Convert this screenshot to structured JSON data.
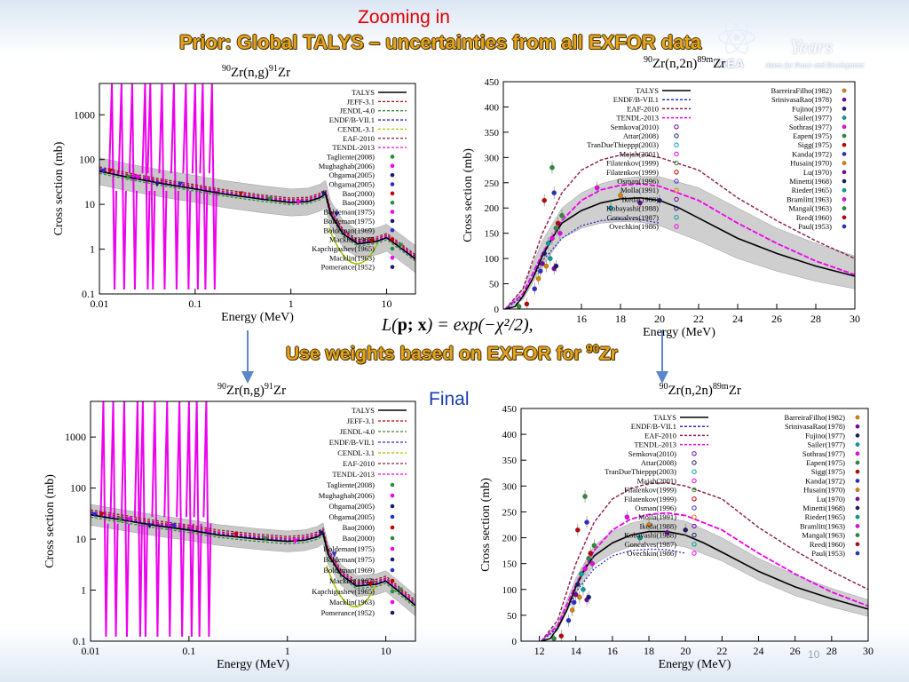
{
  "header": {
    "zoom_label": "Zooming in",
    "title": "Prior: Global TALYS – uncertainties from all EXFOR data",
    "weights_text": "Use weights based on EXFOR for ",
    "weights_sup": "90",
    "weights_tail": "Zr",
    "formula_lhs": "L(",
    "formula_bold": "p; x",
    "formula_rhs": ") = exp(−χ²/2),",
    "final_label": "Final",
    "page_number": "10"
  },
  "logo": {
    "years": "Years",
    "org": "IAEA",
    "tagline": "Atoms for Peace and Development"
  },
  "colors": {
    "talys": "#000000",
    "jeff": "#c00000",
    "jendl": "#2e8b3a",
    "endf": "#2c2ccc",
    "cendl": "#a8c000",
    "eaf": "#8b1a4a",
    "tendl": "#ee00ee",
    "band": "#b8b8b8",
    "arrow": "#5b86c8",
    "title_gold": "#e3a41e"
  },
  "chart_data": [
    {
      "id": "ng-prior",
      "type": "line",
      "title_sup1": "90",
      "title_el1": "Zr(n,g)",
      "title_sup2": "91",
      "title_el2": "Zr",
      "xlabel": "Energy (MeV)",
      "ylabel": "Cross section (mb)",
      "xscale": "log",
      "yscale": "log",
      "xlim": [
        0.01,
        20
      ],
      "ylim": [
        0.1,
        5000
      ],
      "xticks": [
        "0.01",
        "0.1",
        "1",
        "10"
      ],
      "yticks": [
        "0.1",
        "1",
        "10",
        "100",
        "1000"
      ],
      "legend": [
        "TALYS",
        "JEFF-3.1",
        "JENDL-4.0",
        "ENDF/B-VII.1",
        "CENDL-3.1",
        "EAF-2010",
        "TENDL-2013",
        "Tagliente(2008)",
        "Mughaghab(2006)",
        "Ohgama(2005)",
        "Ohgama(2005)",
        "Bao(2000)",
        "Bao(2000)",
        "Boldeman(1975)",
        "Boldeman(1975)",
        "Boldeman(1969)",
        "Macklin(1967)",
        "Kapchigashev(1965)",
        "Macklin(1963)",
        "Pomerance(1952)"
      ],
      "talys": [
        [
          0.01,
          55
        ],
        [
          0.02,
          40
        ],
        [
          0.05,
          28
        ],
        [
          0.1,
          22
        ],
        [
          0.2,
          17
        ],
        [
          0.5,
          13
        ],
        [
          1,
          11
        ],
        [
          1.5,
          11.5
        ],
        [
          2,
          14
        ],
        [
          2.3,
          17
        ],
        [
          2.6,
          6
        ],
        [
          3.5,
          2.2
        ],
        [
          5,
          1.3
        ],
        [
          8,
          1.5
        ],
        [
          10,
          1.8
        ],
        [
          13,
          1.2
        ],
        [
          20,
          0.6
        ]
      ],
      "band_factor": 2.0,
      "resonances": [
        0.0135,
        0.017,
        0.022,
        0.03,
        0.034,
        0.045,
        0.06,
        0.08,
        0.1,
        0.12,
        0.15
      ]
    },
    {
      "id": "n2n-prior",
      "type": "line",
      "title_sup1": "90",
      "title_el1": "Zr(n,2n)",
      "title_sup2": "89m",
      "title_el2": "Zr",
      "xlabel": "Energy (MeV)",
      "ylabel": "Cross section (mb)",
      "xlim": [
        12,
        30
      ],
      "ylim": [
        0,
        450
      ],
      "xticks": [
        "16",
        "18",
        "20",
        "22",
        "24",
        "26",
        "28",
        "30"
      ],
      "yticks": [
        "0",
        "50",
        "100",
        "150",
        "200",
        "250",
        "300",
        "350",
        "400",
        "450"
      ],
      "legend_left": [
        "TALYS",
        "ENDF/B-VII.1",
        "EAF-2010",
        "TENDL-2013",
        "Semkova(2010)",
        "Attar(2008)",
        "TranDueThieppp(2003)",
        "Majah(2001)",
        "Filatenkov(1999)",
        "Filatenkov(1999)",
        "Osman(1996)",
        "Molla(1991)",
        "Ikeda(1988)",
        "Kobayashi(1988)",
        "Goncalves(1987)",
        "Ovechkin(1986)"
      ],
      "legend_right": [
        "BarreiraFilho(1982)",
        "SrinivasaRao(1978)",
        "Fujino(1977)",
        "Sailer(1977)",
        "Sothras(1977)",
        "Eapen(1975)",
        "Sigg(1975)",
        "Kanda(1972)",
        "Husain(1970)",
        "Lu(1970)",
        "Minetti(1968)",
        "Rieder(1965)",
        "Bramlitt(1963)",
        "Mangal(1963)",
        "Reed(1960)",
        "Paul(1953)"
      ],
      "talys": [
        [
          12.1,
          0
        ],
        [
          12.6,
          5
        ],
        [
          13,
          25
        ],
        [
          13.5,
          60
        ],
        [
          14,
          105
        ],
        [
          14.5,
          140
        ],
        [
          15,
          170
        ],
        [
          16,
          195
        ],
        [
          17,
          210
        ],
        [
          18,
          218
        ],
        [
          19,
          220
        ],
        [
          20,
          215
        ],
        [
          21,
          200
        ],
        [
          22,
          180
        ],
        [
          24,
          140
        ],
        [
          26,
          110
        ],
        [
          28,
          85
        ],
        [
          30,
          65
        ]
      ],
      "band": [
        [
          12.1,
          0,
          0
        ],
        [
          13,
          18,
          40
        ],
        [
          14,
          85,
          135
        ],
        [
          15,
          140,
          200
        ],
        [
          16,
          160,
          230
        ],
        [
          17,
          170,
          248
        ],
        [
          18,
          173,
          258
        ],
        [
          19,
          172,
          262
        ],
        [
          20,
          165,
          262
        ],
        [
          22,
          135,
          240
        ],
        [
          24,
          100,
          200
        ],
        [
          26,
          75,
          160
        ],
        [
          28,
          55,
          130
        ],
        [
          30,
          40,
          105
        ]
      ],
      "tendl": [
        [
          12.1,
          0
        ],
        [
          13,
          30
        ],
        [
          14,
          110
        ],
        [
          15,
          175
        ],
        [
          16,
          215
        ],
        [
          17,
          236
        ],
        [
          18,
          245
        ],
        [
          19,
          248
        ],
        [
          20,
          243
        ],
        [
          22,
          215
        ],
        [
          24,
          170
        ],
        [
          26,
          130
        ],
        [
          28,
          95
        ],
        [
          30,
          68
        ]
      ],
      "eaf": [
        [
          12.1,
          0
        ],
        [
          13,
          40
        ],
        [
          14,
          150
        ],
        [
          15,
          230
        ],
        [
          16,
          275
        ],
        [
          17,
          295
        ],
        [
          18,
          305
        ],
        [
          19,
          306
        ],
        [
          20,
          300
        ],
        [
          22,
          275
        ],
        [
          24,
          220
        ],
        [
          26,
          175
        ],
        [
          28,
          135
        ],
        [
          30,
          100
        ]
      ],
      "endf": [
        [
          12.1,
          0
        ],
        [
          13,
          25
        ],
        [
          14,
          95
        ],
        [
          15,
          140
        ],
        [
          16,
          165
        ],
        [
          17,
          175
        ],
        [
          18,
          178
        ],
        [
          19,
          177
        ],
        [
          20,
          170
        ]
      ],
      "exp": [
        [
          12.8,
          5
        ],
        [
          13.2,
          10
        ],
        [
          13.6,
          40
        ],
        [
          13.8,
          60
        ],
        [
          14,
          90
        ],
        [
          14.1,
          110
        ],
        [
          14.3,
          130
        ],
        [
          14.5,
          140
        ],
        [
          14.7,
          160
        ],
        [
          14.8,
          170
        ],
        [
          13.9,
          75
        ],
        [
          14.2,
          85
        ],
        [
          14.6,
          80
        ],
        [
          14.7,
          85
        ],
        [
          14.4,
          100
        ],
        [
          14.9,
          150
        ],
        [
          14.5,
          280
        ],
        [
          14.1,
          215
        ],
        [
          14.6,
          230
        ],
        [
          18,
          225
        ],
        [
          19,
          210
        ],
        [
          20,
          215
        ],
        [
          17.5,
          200
        ],
        [
          16.8,
          240
        ],
        [
          15,
          185
        ]
      ]
    },
    {
      "id": "ng-final",
      "type": "line",
      "title_sup1": "90",
      "title_el1": "Zr(n,g)",
      "title_sup2": "91",
      "title_el2": "Zr",
      "xlabel": "Energy (MeV)",
      "ylabel": "Cross section (mb)",
      "xscale": "log",
      "yscale": "log",
      "xlim": [
        0.01,
        20
      ],
      "ylim": [
        0.1,
        5000
      ],
      "xticks": [
        "0.01",
        "0.1",
        "1",
        "10"
      ],
      "yticks": [
        "0.1",
        "1",
        "10",
        "100",
        "1000"
      ],
      "legend": [
        "TALYS",
        "JEFF-3.1",
        "JENDL-4.0",
        "ENDF/B-VII.1",
        "CENDL-3.1",
        "EAF-2010",
        "TENDL-2013",
        "Tagliente(2008)",
        "Mughaghab(2006)",
        "Ohgama(2005)",
        "Ohgama(2005)",
        "Bao(2000)",
        "Bao(2000)",
        "Boldeman(1975)",
        "Boldeman(1975)",
        "Boldeman(1969)",
        "Macklin(1967)",
        "Kapchigashev(1965)",
        "Macklin(1963)",
        "Pomerance(1952)"
      ],
      "talys": [
        [
          0.01,
          30
        ],
        [
          0.02,
          24
        ],
        [
          0.05,
          18
        ],
        [
          0.1,
          15
        ],
        [
          0.2,
          12
        ],
        [
          0.5,
          10
        ],
        [
          1,
          9
        ],
        [
          1.5,
          9.5
        ],
        [
          2,
          11
        ],
        [
          2.3,
          13
        ],
        [
          2.6,
          5
        ],
        [
          3.5,
          2.0
        ],
        [
          5,
          1.2
        ],
        [
          8,
          1.3
        ],
        [
          10,
          1.5
        ],
        [
          13,
          1.0
        ],
        [
          20,
          0.5
        ]
      ],
      "band_factor": 1.6,
      "resonances": [
        0.0135,
        0.017,
        0.022,
        0.03,
        0.034,
        0.045,
        0.06,
        0.08,
        0.1,
        0.12,
        0.15
      ]
    },
    {
      "id": "n2n-final",
      "type": "line",
      "title_sup1": "90",
      "title_el1": "Zr(n,2n)",
      "title_sup2": "89m",
      "title_el2": "Zr",
      "xlabel": "Energy (MeV)",
      "ylabel": "Cross section (mb)",
      "xlim": [
        11,
        30
      ],
      "ylim": [
        0,
        450
      ],
      "xticks": [
        "12",
        "14",
        "16",
        "18",
        "20",
        "22",
        "24",
        "26",
        "28",
        "30"
      ],
      "yticks": [
        "0",
        "50",
        "100",
        "150",
        "200",
        "250",
        "300",
        "350",
        "400",
        "450"
      ],
      "legend_left": [
        "TALYS",
        "ENDF/B-VII.1",
        "EAF-2010",
        "TENDL-2013",
        "Semkova(2010)",
        "Attar(2008)",
        "TranDueThieppp(2003)",
        "Majah(2001)",
        "Filatenkov(1999)",
        "Filatenkov(1999)",
        "Osman(1996)",
        "Molla(1991)",
        "Ikeda(1988)",
        "Kobayashi(1988)",
        "Goncalves(1987)",
        "Ovechkin(1986)"
      ],
      "legend_right": [
        "BarreiraFilho(1982)",
        "SrinivasaRao(1978)",
        "Fujino(1977)",
        "Sailer(1977)",
        "Sothras(1977)",
        "Eapen(1975)",
        "Sigg(1975)",
        "Kanda(1972)",
        "Husain(1970)",
        "Lu(1970)",
        "Minetti(1968)",
        "Rieder(1965)",
        "Bramlitt(1963)",
        "Mangal(1963)",
        "Reed(1960)",
        "Paul(1953)"
      ],
      "talys": [
        [
          12.1,
          0
        ],
        [
          12.6,
          5
        ],
        [
          13,
          25
        ],
        [
          13.5,
          60
        ],
        [
          14,
          105
        ],
        [
          14.5,
          140
        ],
        [
          15,
          165
        ],
        [
          16,
          190
        ],
        [
          17,
          205
        ],
        [
          18,
          212
        ],
        [
          19,
          212
        ],
        [
          20,
          205
        ],
        [
          21,
          190
        ],
        [
          22,
          172
        ],
        [
          24,
          135
        ],
        [
          26,
          105
        ],
        [
          28,
          82
        ],
        [
          30,
          62
        ]
      ],
      "band": [
        [
          12.1,
          0,
          0
        ],
        [
          13,
          20,
          35
        ],
        [
          14,
          92,
          122
        ],
        [
          15,
          148,
          185
        ],
        [
          16,
          170,
          212
        ],
        [
          17,
          183,
          228
        ],
        [
          18,
          188,
          236
        ],
        [
          19,
          188,
          238
        ],
        [
          20,
          182,
          232
        ],
        [
          22,
          155,
          200
        ],
        [
          24,
          118,
          160
        ],
        [
          26,
          88,
          128
        ],
        [
          28,
          66,
          102
        ],
        [
          30,
          48,
          80
        ]
      ],
      "tendl": [
        [
          12.1,
          0
        ],
        [
          13,
          30
        ],
        [
          14,
          110
        ],
        [
          15,
          175
        ],
        [
          16,
          215
        ],
        [
          17,
          236
        ],
        [
          18,
          245
        ],
        [
          19,
          248
        ],
        [
          20,
          243
        ],
        [
          22,
          215
        ],
        [
          24,
          170
        ],
        [
          26,
          130
        ],
        [
          28,
          95
        ],
        [
          30,
          68
        ]
      ],
      "eaf": [
        [
          12.1,
          0
        ],
        [
          13,
          40
        ],
        [
          14,
          150
        ],
        [
          15,
          230
        ],
        [
          16,
          275
        ],
        [
          17,
          295
        ],
        [
          18,
          305
        ],
        [
          19,
          306
        ],
        [
          20,
          300
        ],
        [
          22,
          275
        ],
        [
          24,
          220
        ],
        [
          26,
          175
        ],
        [
          28,
          135
        ],
        [
          30,
          100
        ]
      ],
      "endf": [
        [
          12.1,
          0
        ],
        [
          13,
          25
        ],
        [
          14,
          95
        ],
        [
          15,
          140
        ],
        [
          16,
          165
        ],
        [
          17,
          175
        ],
        [
          18,
          178
        ],
        [
          19,
          177
        ],
        [
          20,
          170
        ]
      ],
      "exp": [
        [
          12.8,
          5
        ],
        [
          13.2,
          10
        ],
        [
          13.6,
          40
        ],
        [
          13.8,
          60
        ],
        [
          14,
          90
        ],
        [
          14.1,
          110
        ],
        [
          14.3,
          130
        ],
        [
          14.5,
          140
        ],
        [
          14.7,
          160
        ],
        [
          14.8,
          170
        ],
        [
          13.9,
          75
        ],
        [
          14.2,
          85
        ],
        [
          14.6,
          80
        ],
        [
          14.7,
          85
        ],
        [
          14.4,
          100
        ],
        [
          14.9,
          150
        ],
        [
          14.5,
          280
        ],
        [
          14.1,
          215
        ],
        [
          14.6,
          230
        ],
        [
          18,
          225
        ],
        [
          19,
          210
        ],
        [
          20,
          215
        ],
        [
          17.5,
          200
        ],
        [
          16.8,
          240
        ],
        [
          15,
          185
        ]
      ]
    }
  ]
}
